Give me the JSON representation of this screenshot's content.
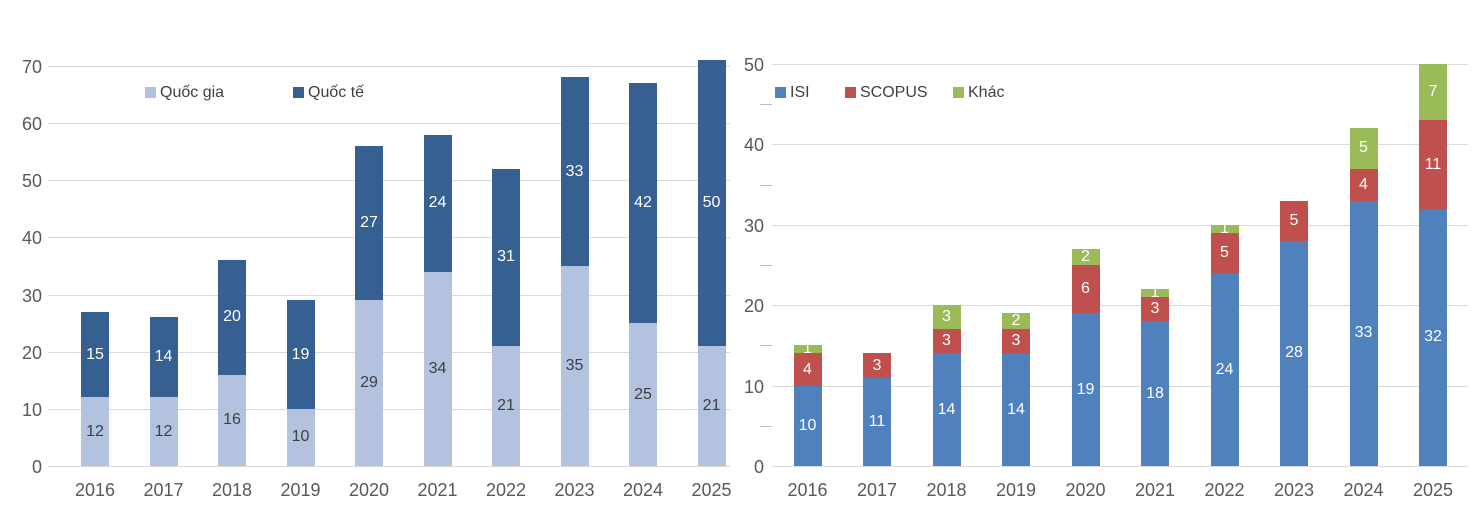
{
  "figure": {
    "background": "#ffffff",
    "gridline_color": "#d9d9d9",
    "axis_text_color": "#595959"
  },
  "chart_data": [
    {
      "type": "bar",
      "stacked": true,
      "title": "",
      "xlabel": "",
      "ylabel": "",
      "categories": [
        "2016",
        "2017",
        "2018",
        "2019",
        "2020",
        "2021",
        "2022",
        "2023",
        "2024",
        "2025"
      ],
      "series": [
        {
          "name": "Quốc gia",
          "color": "#b3c3df",
          "label_color": "#404040",
          "values": [
            12,
            12,
            16,
            10,
            29,
            34,
            21,
            35,
            25,
            21
          ]
        },
        {
          "name": "Quốc tế",
          "color": "#376092",
          "label_color": "#ffffff",
          "values": [
            15,
            14,
            20,
            19,
            27,
            24,
            31,
            33,
            42,
            50
          ]
        }
      ],
      "yaxis": {
        "min": 0,
        "max": 70,
        "tick_step": 10
      },
      "grid": true,
      "legend_position": "top",
      "data_labels": true
    },
    {
      "type": "bar",
      "stacked": true,
      "title": "",
      "xlabel": "",
      "ylabel": "",
      "categories": [
        "2016",
        "2017",
        "2018",
        "2019",
        "2020",
        "2021",
        "2022",
        "2023",
        "2024",
        "2025"
      ],
      "series": [
        {
          "name": "ISI",
          "color": "#4f81bd",
          "label_color": "#ffffff",
          "values": [
            10,
            11,
            14,
            14,
            19,
            18,
            24,
            28,
            33,
            32
          ]
        },
        {
          "name": "SCOPUS",
          "color": "#c0504d",
          "label_color": "#ffffff",
          "values": [
            4,
            3,
            3,
            3,
            6,
            3,
            5,
            5,
            4,
            11
          ]
        },
        {
          "name": "Khác",
          "color": "#9bbb59",
          "label_color": "#ffffff",
          "values": [
            1,
            0,
            3,
            2,
            2,
            1,
            1,
            0,
            5,
            7
          ]
        }
      ],
      "yaxis": {
        "min": 0,
        "max": 50,
        "tick_step": 10,
        "minor_tick_step": 5
      },
      "grid": true,
      "legend_position": "top",
      "data_labels": true
    }
  ]
}
